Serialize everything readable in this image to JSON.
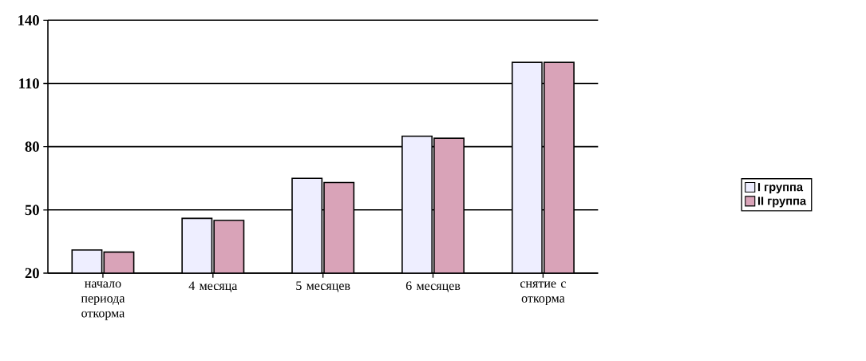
{
  "chart_data": {
    "type": "bar",
    "categories": [
      "начало периода откорма",
      "4 месяца",
      "5 месяцев",
      "6 месяцев",
      "снятие с откорма"
    ],
    "series": [
      {
        "name": "I группа",
        "color": "#eeeeff",
        "values": [
          31,
          46,
          65,
          85,
          120
        ]
      },
      {
        "name": "II группа",
        "color": "#d9a3b8",
        "values": [
          30,
          45,
          63,
          84,
          120
        ]
      }
    ],
    "ylim": [
      20,
      140
    ],
    "yticks": [
      20,
      50,
      80,
      110,
      140
    ],
    "grid": "y",
    "legend": "right"
  }
}
